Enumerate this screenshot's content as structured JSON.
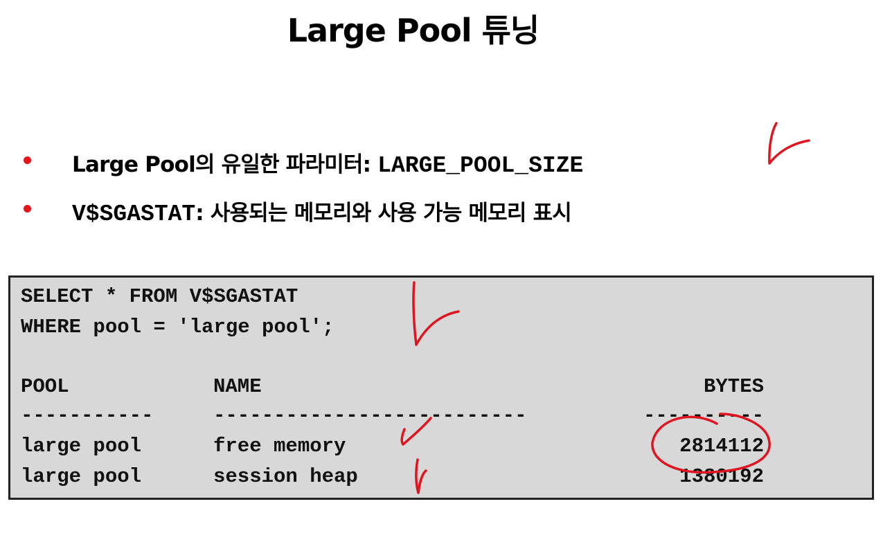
{
  "slide": {
    "title": "Large Pool 튜닝"
  },
  "bullets": [
    {
      "text": "Large Pool의 유일한 파라미터: ",
      "code": "LARGE_POOL_SIZE"
    },
    {
      "code": "V$SGASTAT",
      "text": ": 사용되는 메모리와 사용 가능 메모리 표시"
    }
  ],
  "code_block": {
    "query_lines": [
      "SELECT * FROM V$SGASTAT",
      "WHERE pool = 'large pool';"
    ],
    "columns": {
      "pool": "POOL",
      "name": "NAME",
      "bytes": "BYTES"
    },
    "dashes": {
      "pool": "-----------",
      "name": "--------------------------",
      "bytes": "----------"
    },
    "rows": [
      {
        "pool": "large pool",
        "name": "free memory",
        "bytes": "2814112"
      },
      {
        "pool": "large pool",
        "name": "session heap",
        "bytes": "1380192"
      }
    ]
  },
  "colors": {
    "bullet": "#e4161b",
    "annotation_ink": "#e0141e",
    "code_background": "#d8d8d8"
  }
}
